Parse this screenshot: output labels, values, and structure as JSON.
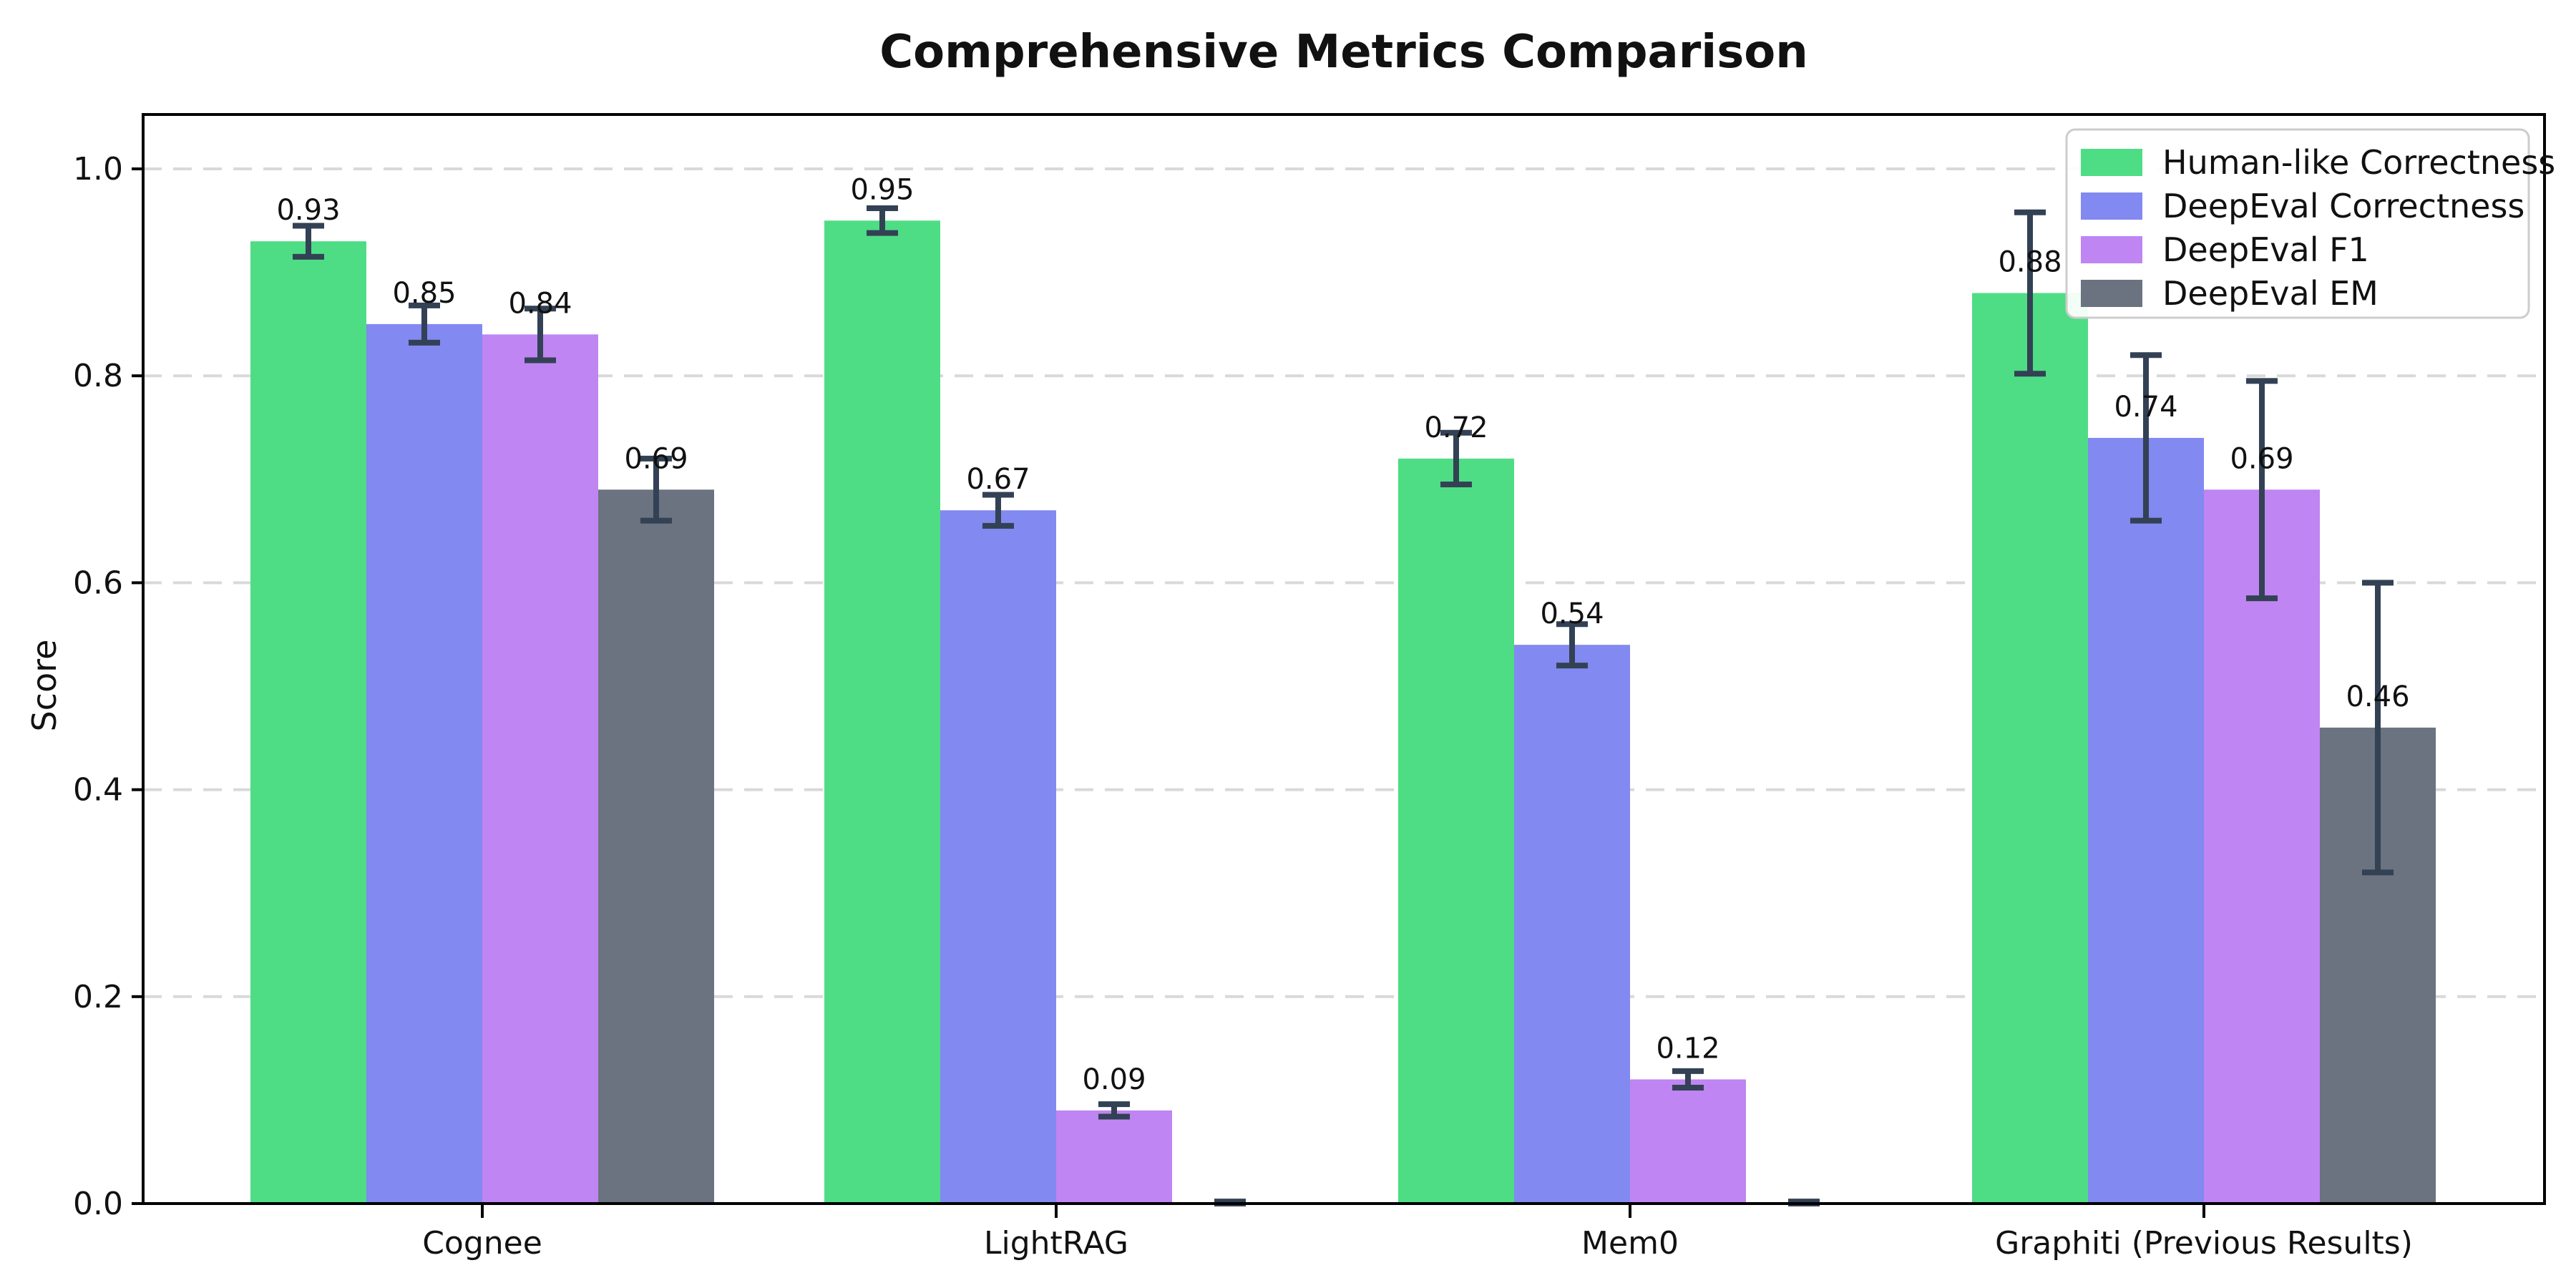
{
  "title": "Comprehensive Metrics Comparison",
  "chart_data": {
    "type": "bar",
    "title": "Comprehensive Metrics Comparison",
    "xlabel": "",
    "ylabel": "Score",
    "categories": [
      "Cognee",
      "LightRAG",
      "Mem0",
      "Graphiti (Previous Results)"
    ],
    "series": [
      {
        "name": "Human-like Correctness",
        "color": "#4EDD84",
        "values": [
          0.93,
          0.95,
          0.72,
          0.88
        ],
        "errors": [
          0.015,
          0.012,
          0.025,
          0.078
        ],
        "labels": [
          "0.93",
          "0.95",
          "0.72",
          "0.88"
        ]
      },
      {
        "name": "DeepEval Correctness",
        "color": "#8289F0",
        "values": [
          0.85,
          0.67,
          0.54,
          0.74
        ],
        "errors": [
          0.018,
          0.015,
          0.02,
          0.08
        ],
        "labels": [
          "0.85",
          "0.67",
          "0.54",
          "0.74"
        ]
      },
      {
        "name": "DeepEval F1",
        "color": "#BF85F2",
        "values": [
          0.84,
          0.09,
          0.12,
          0.69
        ],
        "errors": [
          0.025,
          0.006,
          0.008,
          0.105
        ],
        "labels": [
          "0.84",
          "0.09",
          "0.12",
          "0.69"
        ]
      },
      {
        "name": "DeepEval EM",
        "color": "#6B7280",
        "values": [
          0.69,
          0.0,
          0.0,
          0.46
        ],
        "errors": [
          0.03,
          0.002,
          0.002,
          0.14
        ],
        "labels": [
          "0.69",
          null,
          null,
          "0.46"
        ]
      }
    ],
    "yticks": [
      "0.0",
      "0.2",
      "0.4",
      "0.6",
      "0.8",
      "1.0"
    ],
    "ylim": [
      0.0,
      1.053
    ],
    "grid": "horizontal-dashed",
    "legend_position": "upper-right",
    "legend_entries": [
      "Human-like Correctness",
      "DeepEval Correctness",
      "DeepEval F1",
      "DeepEval EM"
    ],
    "value_label_format": ".2f",
    "zero_value_labels_hidden": true,
    "error_bar_color": "#334155",
    "grid_color": "#d9d9d9",
    "spine_color": "#000000",
    "text_color": "#111111",
    "background_color": "#ffffff"
  }
}
